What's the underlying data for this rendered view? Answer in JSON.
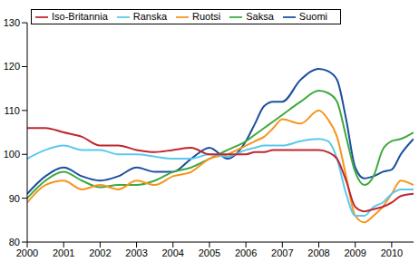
{
  "chart_data": {
    "type": "line",
    "x": [
      2000,
      2000.5,
      2001,
      2001.5,
      2002,
      2002.5,
      2003,
      2003.5,
      2004,
      2004.5,
      2005,
      2005.5,
      2006,
      2006.25,
      2006.5,
      2006.75,
      2007,
      2007.5,
      2008,
      2008.25,
      2008.5,
      2008.75,
      2009,
      2009.25,
      2009.5,
      2009.75,
      2010,
      2010.25,
      2010.6
    ],
    "series": [
      {
        "name": "Suomi",
        "color": "#1a4f9e",
        "values": [
          91,
          95,
          97,
          95,
          94,
          95,
          97,
          96,
          96,
          99,
          101.5,
          99,
          103,
          107,
          111,
          112,
          112,
          117,
          119.5,
          119,
          117,
          108,
          97,
          94.5,
          95,
          96,
          96.5,
          100,
          103.5
        ]
      },
      {
        "name": "Saksa",
        "color": "#3daa3d",
        "values": [
          90,
          94,
          96,
          94,
          92.5,
          93,
          93,
          94,
          96,
          97,
          99,
          101,
          103,
          104.5,
          106,
          107.5,
          109,
          112,
          114.5,
          114,
          112,
          104,
          96,
          93,
          95,
          101,
          103,
          103.5,
          105
        ]
      },
      {
        "name": "Ruotsi",
        "color": "#f7941d",
        "values": [
          89,
          93,
          94,
          92,
          93,
          92,
          94,
          93,
          95,
          96,
          99,
          100,
          102,
          103,
          104,
          106,
          108,
          107,
          110,
          108,
          104,
          95,
          86,
          84.5,
          86,
          88,
          91,
          94,
          93
        ]
      },
      {
        "name": "Ranska",
        "color": "#5bc8f0",
        "values": [
          99,
          101,
          102,
          101,
          101,
          100,
          100,
          99.5,
          99,
          99,
          100,
          99.5,
          101,
          101.5,
          102,
          102,
          102,
          103,
          103.5,
          103,
          99,
          91,
          86,
          86,
          88,
          89,
          91,
          92,
          92
        ]
      },
      {
        "name": "Iso-Britannia",
        "color": "#c0262d",
        "values": [
          106,
          106,
          105,
          104,
          102,
          102,
          101,
          100.5,
          101,
          101.5,
          100,
          100,
          100,
          100.5,
          100.5,
          101,
          101,
          101,
          101,
          100.5,
          99,
          94,
          88,
          87,
          87.5,
          88,
          89,
          90.5,
          91
        ]
      }
    ],
    "xlim": [
      2000,
      2010.6
    ],
    "xticks": [
      2000,
      2001,
      2002,
      2003,
      2004,
      2005,
      2006,
      2007,
      2008,
      2009,
      2010
    ],
    "ylim": [
      80,
      130
    ],
    "yticks": [
      80,
      90,
      100,
      110,
      120,
      130
    ],
    "grid": false,
    "legend": "upper left"
  }
}
